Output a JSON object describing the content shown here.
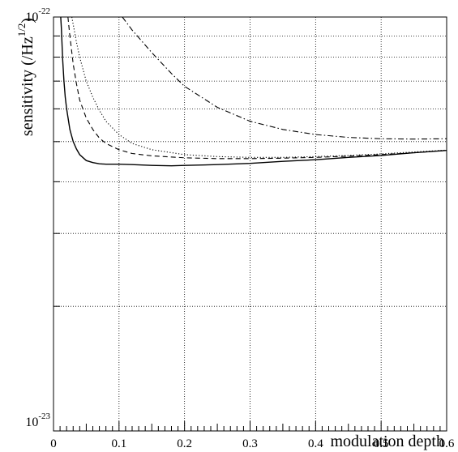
{
  "chart_data": {
    "type": "line",
    "title": "",
    "xlabel": "modulation depth",
    "ylabel": "sensitivity (/Hz",
    "ylabel_exponent": "1/2",
    "ylabel_close": ")",
    "xlim": [
      0,
      0.6
    ],
    "ylim": [
      1e-23,
      1e-22
    ],
    "yscale": "log",
    "grid": true,
    "x_ticks": [
      "0",
      "0.1",
      "0.2",
      "0.3",
      "0.4",
      "0.5",
      "0.6"
    ],
    "y_ticks": [
      {
        "mantissa": "10",
        "exponent": "-22"
      },
      {
        "mantissa": "10",
        "exponent": "-23"
      }
    ],
    "series": [
      {
        "style": "solid",
        "x": [
          0.011,
          0.012,
          0.014,
          0.016,
          0.018,
          0.02,
          0.025,
          0.03,
          0.035,
          0.04,
          0.05,
          0.06,
          0.07,
          0.08,
          0.1,
          0.12,
          0.15,
          0.18,
          0.2,
          0.25,
          0.3,
          0.35,
          0.4,
          0.45,
          0.5,
          0.55,
          0.6
        ],
        "y": [
          1e-22,
          9.4e-23,
          7.9e-23,
          7e-23,
          6.4e-23,
          6e-23,
          5.35e-23,
          5e-23,
          4.8e-23,
          4.65e-23,
          4.5e-23,
          4.45e-23,
          4.42e-23,
          4.41e-23,
          4.41e-23,
          4.4e-23,
          4.38e-23,
          4.37e-23,
          4.38e-23,
          4.4e-23,
          4.43e-23,
          4.48e-23,
          4.52e-23,
          4.58e-23,
          4.63e-23,
          4.7e-23,
          4.76e-23
        ]
      },
      {
        "style": "dashed",
        "x": [
          0.022,
          0.025,
          0.03,
          0.035,
          0.04,
          0.05,
          0.06,
          0.07,
          0.08,
          0.1,
          0.12,
          0.15,
          0.2,
          0.25,
          0.3,
          0.35,
          0.4,
          0.45,
          0.5,
          0.55,
          0.6
        ],
        "y": [
          1e-22,
          9e-23,
          7.7e-23,
          6.9e-23,
          6.3e-23,
          5.7e-23,
          5.35e-23,
          5.1e-23,
          4.95e-23,
          4.78e-23,
          4.68e-23,
          4.62e-23,
          4.57e-23,
          4.55e-23,
          4.55e-23,
          4.56e-23,
          4.58e-23,
          4.61e-23,
          4.65e-23,
          4.7e-23,
          4.76e-23
        ]
      },
      {
        "style": "dotted",
        "x": [
          0.028,
          0.03,
          0.035,
          0.04,
          0.05,
          0.06,
          0.07,
          0.08,
          0.1,
          0.12,
          0.15,
          0.2,
          0.25,
          0.3,
          0.35,
          0.4,
          0.45,
          0.5,
          0.55,
          0.6
        ],
        "y": [
          1e-22,
          9.6e-23,
          8.7e-23,
          8e-23,
          7e-23,
          6.4e-23,
          5.95e-23,
          5.6e-23,
          5.2e-23,
          4.95e-23,
          4.78e-23,
          4.65e-23,
          4.6e-23,
          4.58e-23,
          4.58e-23,
          4.6e-23,
          4.63e-23,
          4.67e-23,
          4.72e-23,
          4.77e-23
        ]
      },
      {
        "style": "dashdot",
        "x": [
          0.105,
          0.12,
          0.15,
          0.18,
          0.2,
          0.25,
          0.3,
          0.35,
          0.4,
          0.45,
          0.5,
          0.55,
          0.6
        ],
        "y": [
          1e-22,
          9.3e-23,
          8.2e-23,
          7.3e-23,
          6.8e-23,
          6.05e-23,
          5.6e-23,
          5.35e-23,
          5.2e-23,
          5.12e-23,
          5.08e-23,
          5.07e-23,
          5.08e-23
        ]
      }
    ]
  }
}
